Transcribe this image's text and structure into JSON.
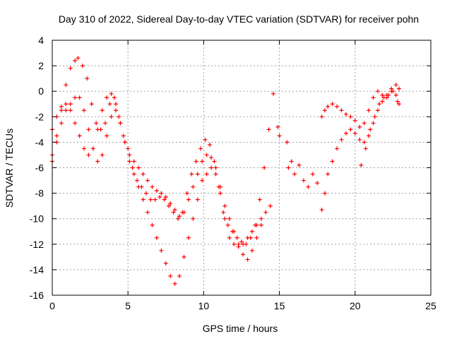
{
  "chart_data": {
    "type": "scatter",
    "title": "Day 310 of 2022, Sidereal Day-to-day VTEC variation (SDTVAR) for receiver pohn",
    "xlabel": "GPS time / hours",
    "ylabel": "SDTVAR / TECUs",
    "xlim": [
      0,
      25
    ],
    "ylim": [
      -16,
      4
    ],
    "xticks": [
      0,
      5,
      10,
      15,
      20,
      25
    ],
    "yticks": [
      -16,
      -14,
      -12,
      -10,
      -8,
      -6,
      -4,
      -2,
      0,
      2,
      4
    ],
    "grid": true,
    "marker": "+",
    "color": "#ff0000",
    "series": [
      {
        "x": [
          0.0,
          0.3,
          0.6,
          0.9,
          1.2,
          1.5,
          1.7,
          2.0,
          2.3,
          2.6,
          2.9,
          3.2,
          3.5,
          3.8,
          4.1,
          4.4,
          4.7,
          5.0,
          5.3,
          5.6,
          5.9,
          6.2,
          6.5,
          6.8,
          7.1,
          7.4,
          7.7,
          8.0,
          8.3,
          8.6,
          8.9,
          9.2,
          9.5,
          9.8,
          10.1,
          10.4,
          10.7,
          11.0,
          11.3,
          11.6,
          11.9,
          12.2,
          12.5,
          12.8,
          13.1,
          13.4,
          13.7,
          14.0,
          14.3,
          14.6
        ],
        "y": [
          -5.0,
          -3.5,
          -1.5,
          0.5,
          1.8,
          2.4,
          2.6,
          2.0,
          1.0,
          -1.0,
          -2.5,
          -3.0,
          -2.5,
          -1.0,
          -0.5,
          -2.0,
          -3.5,
          -4.5,
          -6.0,
          -7.0,
          -7.5,
          -8.0,
          -8.5,
          -8.5,
          -8.3,
          -8.5,
          -9.0,
          -9.5,
          -10.0,
          -9.5,
          -8.0,
          -6.5,
          -5.5,
          -4.5,
          -3.8,
          -4.2,
          -5.5,
          -7.5,
          -9.5,
          -10.5,
          -11.0,
          -11.5,
          -11.8,
          -12.0,
          -11.5,
          -10.5,
          -8.5,
          -6.0,
          -3.0,
          -0.2
        ]
      },
      {
        "x": [
          0.0,
          0.3,
          0.6,
          0.9,
          1.2,
          1.5,
          1.8,
          2.1,
          2.4,
          2.7,
          3.0,
          3.3,
          3.6,
          3.9,
          4.2,
          4.5,
          4.8,
          5.1,
          5.4,
          5.7,
          6.0,
          6.3,
          6.6,
          6.9,
          7.2,
          7.5,
          7.8,
          8.1,
          8.4,
          8.7,
          9.0,
          9.3,
          9.6,
          9.9,
          10.2,
          10.5,
          10.8,
          11.1,
          11.4,
          11.7,
          12.0,
          12.3,
          12.6,
          12.9,
          13.2,
          13.5,
          13.8,
          14.1,
          14.4
        ],
        "y": [
          -5.5,
          -4.0,
          -2.5,
          -1.5,
          -1.0,
          -0.5,
          -0.5,
          -1.5,
          -3.0,
          -4.5,
          -5.5,
          -5.0,
          -3.5,
          -2.0,
          -1.5,
          -2.5,
          -4.0,
          -5.5,
          -6.5,
          -7.5,
          -8.5,
          -9.5,
          -10.5,
          -11.5,
          -12.5,
          -13.5,
          -14.5,
          -15.1,
          -14.5,
          -13.0,
          -11.5,
          -10.0,
          -8.5,
          -7.0,
          -6.5,
          -6.0,
          -6.5,
          -8.0,
          -10.0,
          -11.5,
          -12.0,
          -12.2,
          -12.0,
          -11.5,
          -11.0,
          -10.5,
          -10.0,
          -9.5,
          -9.0
        ]
      },
      {
        "x": [
          0.0,
          0.3,
          0.6,
          0.9,
          1.2,
          1.5,
          1.8,
          2.1,
          2.4,
          2.7,
          3.0,
          3.3,
          3.6,
          3.9,
          4.2,
          4.5,
          4.8,
          5.1,
          5.4,
          5.7,
          6.0,
          6.3,
          6.6,
          6.9,
          7.2,
          7.5,
          7.8,
          8.1,
          8.4,
          8.7,
          9.0,
          9.3,
          9.6,
          9.9,
          10.2,
          10.5,
          10.8,
          11.1,
          11.4,
          11.7,
          12.0,
          12.3,
          12.6,
          12.9,
          13.2,
          13.5,
          13.8
        ],
        "y": [
          -3.0,
          -2.0,
          -1.2,
          -1.0,
          -1.5,
          -2.5,
          -3.5,
          -4.5,
          -5.0,
          -4.5,
          -3.0,
          -1.5,
          -0.5,
          -0.2,
          -1.0,
          -2.5,
          -4.0,
          -5.0,
          -5.5,
          -6.0,
          -6.5,
          -7.0,
          -7.5,
          -7.8,
          -8.0,
          -8.3,
          -8.8,
          -9.3,
          -9.8,
          -9.5,
          -8.5,
          -7.5,
          -6.5,
          -5.5,
          -5.0,
          -5.2,
          -6.0,
          -7.5,
          -9.0,
          -10.0,
          -11.0,
          -12.0,
          -12.8,
          -13.2,
          -12.5,
          -11.5,
          -10.5
        ]
      },
      {
        "x": [
          14.9,
          15.0,
          15.5,
          15.6,
          15.8,
          16.0,
          16.3,
          16.6,
          16.9,
          17.2,
          17.5
        ],
        "y": [
          -2.8,
          -3.5,
          -4.0,
          -6.0,
          -5.5,
          -6.5,
          -5.8,
          -7.0,
          -7.5,
          -6.5,
          -7.2
        ]
      },
      {
        "x": [
          17.8,
          18.0,
          18.2,
          18.5,
          18.8,
          19.1,
          19.4,
          19.7,
          20.0,
          20.3,
          20.6,
          20.9,
          21.2,
          21.5,
          21.8,
          22.1,
          22.4,
          22.7,
          22.9
        ],
        "y": [
          -9.3,
          -8.0,
          -6.5,
          -5.5,
          -4.5,
          -3.8,
          -3.3,
          -3.0,
          -3.3,
          -3.8,
          -4.0,
          -3.5,
          -2.5,
          -1.5,
          -0.8,
          -0.3,
          0.0,
          -0.3,
          -1.0
        ]
      },
      {
        "x": [
          17.8,
          18.0,
          18.2,
          18.5,
          18.8,
          19.1,
          19.4,
          19.7,
          20.0,
          20.3,
          20.6,
          20.9,
          21.2,
          21.5,
          21.8,
          22.1,
          22.4,
          22.7,
          22.9
        ],
        "y": [
          -2.0,
          -1.5,
          -1.2,
          -1.0,
          -1.2,
          -1.5,
          -1.8,
          -2.0,
          -2.3,
          -2.8,
          -2.5,
          -1.5,
          -0.5,
          0.0,
          -0.3,
          -0.5,
          0.2,
          0.5,
          0.2
        ]
      },
      {
        "x": [
          20.4,
          20.7,
          21.0,
          21.3,
          21.6,
          21.9,
          22.2,
          22.5,
          22.8
        ],
        "y": [
          -5.8,
          -4.5,
          -3.0,
          -2.0,
          -1.0,
          -0.5,
          -0.3,
          0.0,
          -0.8
        ]
      }
    ]
  }
}
